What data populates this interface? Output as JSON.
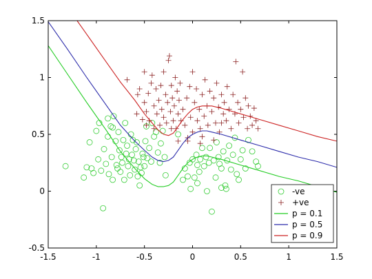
{
  "chart_data": {
    "type": "scatter",
    "title": "",
    "xlabel": "",
    "ylabel": "",
    "xlim": [
      -1.5,
      1.5
    ],
    "ylim": [
      -0.5,
      1.5
    ],
    "xticks": [
      "-1.5",
      "-1",
      "-0.5",
      "0",
      "0.5",
      "1",
      "1.5"
    ],
    "yticks": [
      "-0.5",
      "0",
      "0.5",
      "1",
      "1.5"
    ],
    "grid": false,
    "legend_position": "bottom-right",
    "legend_entries": [
      "-ve",
      "+ve",
      "p = 0.1",
      "p = 0.5",
      "p = 0.9"
    ],
    "series": [
      {
        "name": "-ve",
        "kind": "scatter",
        "marker": "circle",
        "color": "#33cc33",
        "points": [
          [
            -1.32,
            0.22
          ],
          [
            -1.13,
            0.12
          ],
          [
            -1.1,
            0.21
          ],
          [
            -1.07,
            0.43
          ],
          [
            -1.05,
            0.2
          ],
          [
            -1.03,
            0.16
          ],
          [
            -1.0,
            0.53
          ],
          [
            -0.98,
            0.28
          ],
          [
            -0.97,
            0.6
          ],
          [
            -0.95,
            0.18
          ],
          [
            -0.93,
            -0.15
          ],
          [
            -0.92,
            0.37
          ],
          [
            -0.9,
            0.24
          ],
          [
            -0.88,
            0.48
          ],
          [
            -0.87,
            0.15
          ],
          [
            -0.85,
            0.57
          ],
          [
            -0.84,
            0.3
          ],
          [
            -0.83,
            0.1
          ],
          [
            -0.82,
            0.66
          ],
          [
            -0.8,
            0.44
          ],
          [
            -0.79,
            0.23
          ],
          [
            -0.78,
            0.2
          ],
          [
            -0.77,
            0.52
          ],
          [
            -0.76,
            0.36
          ],
          [
            -0.75,
            0.17
          ],
          [
            -0.74,
            0.3
          ],
          [
            -0.73,
            0.25
          ],
          [
            -0.72,
            0.45
          ],
          [
            -0.71,
            0.1
          ],
          [
            -0.7,
            0.6
          ],
          [
            -0.69,
            0.33
          ],
          [
            -0.68,
            0.4
          ],
          [
            -0.67,
            0.22
          ],
          [
            -0.66,
            0.28
          ],
          [
            -0.65,
            0.14
          ],
          [
            -0.64,
            0.5
          ],
          [
            -0.63,
            0.32
          ],
          [
            -0.62,
            0.45
          ],
          [
            -0.61,
            0.27
          ],
          [
            -0.6,
            0.19
          ],
          [
            -0.59,
            0.37
          ],
          [
            -0.58,
            0.43
          ],
          [
            -0.57,
            0.13
          ],
          [
            -0.56,
            0.26
          ],
          [
            -0.55,
            0.05
          ],
          [
            -0.54,
            0.21
          ],
          [
            -0.53,
            0.16
          ],
          [
            -0.52,
            0.33
          ],
          [
            -0.51,
            0.3
          ],
          [
            -0.5,
            0.22
          ],
          [
            -0.49,
            0.44
          ],
          [
            -0.48,
            0.57
          ],
          [
            -0.47,
            0.29
          ],
          [
            -0.45,
            0.38
          ],
          [
            -0.43,
            0.26
          ],
          [
            -0.42,
            0.6
          ],
          [
            -0.4,
            0.48
          ],
          [
            -0.38,
            0.52
          ],
          [
            -0.36,
            0.34
          ],
          [
            -0.34,
            0.25
          ],
          [
            -0.33,
            0.42
          ],
          [
            -0.31,
            0.53
          ],
          [
            -0.29,
            0.3
          ],
          [
            -0.28,
            0.14
          ],
          [
            -0.1,
            0.1
          ],
          [
            -0.08,
            0.2
          ],
          [
            -0.05,
            0.13
          ],
          [
            -0.03,
            0.25
          ],
          [
            -0.02,
            0.02
          ],
          [
            0.0,
            0.28
          ],
          [
            0.02,
            0.12
          ],
          [
            0.04,
            0.32
          ],
          [
            0.05,
            0.07
          ],
          [
            0.07,
            0.17
          ],
          [
            0.08,
            0.28
          ],
          [
            0.1,
            0.38
          ],
          [
            0.12,
            0.22
          ],
          [
            0.14,
            0.3
          ],
          [
            0.15,
            0.0
          ],
          [
            0.17,
            0.25
          ],
          [
            0.18,
            0.38
          ],
          [
            0.2,
            -0.18
          ],
          [
            0.22,
            0.27
          ],
          [
            0.24,
            0.12
          ],
          [
            0.25,
            0.43
          ],
          [
            0.27,
            0.3
          ],
          [
            0.28,
            0.24
          ],
          [
            0.3,
            0.2
          ],
          [
            0.32,
            0.35
          ],
          [
            0.34,
            0.05
          ],
          [
            0.36,
            0.27
          ],
          [
            0.38,
            0.4
          ],
          [
            0.4,
            0.19
          ],
          [
            0.42,
            0.32
          ],
          [
            0.44,
            0.47
          ],
          [
            0.46,
            0.15
          ],
          [
            0.48,
            0.1
          ],
          [
            0.5,
            0.28
          ],
          [
            0.52,
            0.36
          ],
          [
            0.55,
            0.2
          ],
          [
            0.58,
            0.45
          ],
          [
            0.62,
            0.35
          ],
          [
            0.66,
            0.26
          ],
          [
            0.68,
            0.22
          ],
          [
            0.3,
            0.03
          ],
          [
            0.35,
            0.02
          ],
          [
            0.05,
            0.23
          ],
          [
            -0.15,
            0.5
          ],
          [
            -0.83,
            0.56
          ],
          [
            -0.88,
            0.64
          ]
        ]
      },
      {
        "name": "+ve",
        "kind": "scatter",
        "marker": "plus",
        "color": "#8b2020",
        "points": [
          [
            -0.68,
            0.98
          ],
          [
            -0.58,
            0.68
          ],
          [
            -0.57,
            0.85
          ],
          [
            -0.55,
            0.9
          ],
          [
            -0.52,
            0.63
          ],
          [
            -0.5,
            0.78
          ],
          [
            -0.5,
            1.05
          ],
          [
            -0.48,
            0.7
          ],
          [
            -0.46,
            0.86
          ],
          [
            -0.45,
            0.62
          ],
          [
            -0.43,
            0.95
          ],
          [
            -0.42,
            1.02
          ],
          [
            -0.4,
            0.75
          ],
          [
            -0.4,
            0.55
          ],
          [
            -0.38,
            0.9
          ],
          [
            -0.37,
            0.68
          ],
          [
            -0.35,
            0.8
          ],
          [
            -0.34,
            0.58
          ],
          [
            -0.33,
            0.93
          ],
          [
            -0.32,
            0.72
          ],
          [
            -0.3,
            0.65
          ],
          [
            -0.3,
            1.05
          ],
          [
            -0.28,
            0.85
          ],
          [
            -0.27,
            0.6
          ],
          [
            -0.26,
            0.78
          ],
          [
            -0.25,
            1.15
          ],
          [
            -0.24,
            1.19
          ],
          [
            -0.23,
            0.7
          ],
          [
            -0.22,
            0.93
          ],
          [
            -0.21,
            0.82
          ],
          [
            -0.2,
            0.62
          ],
          [
            -0.19,
            0.75
          ],
          [
            -0.18,
            1.0
          ],
          [
            -0.17,
            0.55
          ],
          [
            -0.16,
            0.88
          ],
          [
            -0.15,
            0.68
          ],
          [
            -0.14,
            0.8
          ],
          [
            -0.13,
            0.95
          ],
          [
            -0.12,
            0.62
          ],
          [
            -0.1,
            0.72
          ],
          [
            -0.08,
            0.58
          ],
          [
            -0.06,
            0.82
          ],
          [
            -0.05,
            0.47
          ],
          [
            -0.03,
            0.92
          ],
          [
            -0.02,
            0.65
          ],
          [
            0.0,
            1.05
          ],
          [
            0.0,
            0.52
          ],
          [
            0.02,
            0.78
          ],
          [
            0.04,
            0.9
          ],
          [
            0.05,
            0.62
          ],
          [
            0.07,
            0.72
          ],
          [
            0.08,
            0.55
          ],
          [
            0.1,
            0.85
          ],
          [
            0.12,
            0.66
          ],
          [
            0.13,
            0.98
          ],
          [
            0.15,
            0.75
          ],
          [
            0.16,
            0.58
          ],
          [
            0.18,
            0.88
          ],
          [
            0.2,
            0.7
          ],
          [
            0.22,
            0.82
          ],
          [
            0.24,
            0.6
          ],
          [
            0.25,
            0.95
          ],
          [
            0.27,
            0.74
          ],
          [
            0.28,
            0.52
          ],
          [
            0.3,
            0.85
          ],
          [
            0.32,
            0.68
          ],
          [
            0.33,
            0.78
          ],
          [
            0.35,
            0.62
          ],
          [
            0.36,
            0.92
          ],
          [
            0.38,
            0.72
          ],
          [
            0.4,
            0.55
          ],
          [
            0.42,
            0.85
          ],
          [
            0.44,
            0.68
          ],
          [
            0.45,
            1.14
          ],
          [
            0.47,
            0.78
          ],
          [
            0.48,
            0.6
          ],
          [
            0.5,
            0.72
          ],
          [
            0.52,
            1.05
          ],
          [
            0.53,
            0.65
          ],
          [
            0.55,
            0.82
          ],
          [
            0.57,
            0.55
          ],
          [
            0.58,
            0.75
          ],
          [
            0.6,
            0.66
          ],
          [
            0.62,
            0.58
          ],
          [
            0.64,
            0.73
          ],
          [
            0.66,
            0.62
          ],
          [
            0.68,
            0.55
          ],
          [
            -0.22,
            0.55
          ],
          [
            -0.05,
            0.44
          ],
          [
            0.1,
            0.48
          ],
          [
            0.22,
            0.45
          ],
          [
            -0.15,
            0.44
          ],
          [
            -0.48,
            0.58
          ],
          [
            0.3,
            0.6
          ],
          [
            0.08,
            0.42
          ]
        ]
      },
      {
        "name": "p = 0.1",
        "kind": "line",
        "color": "#22cc22",
        "points": [
          [
            -1.5,
            1.28
          ],
          [
            -1.3,
            1.03
          ],
          [
            -1.1,
            0.78
          ],
          [
            -0.9,
            0.54
          ],
          [
            -0.75,
            0.35
          ],
          [
            -0.6,
            0.2
          ],
          [
            -0.5,
            0.11
          ],
          [
            -0.42,
            0.06
          ],
          [
            -0.36,
            0.04
          ],
          [
            -0.3,
            0.04
          ],
          [
            -0.25,
            0.05
          ],
          [
            -0.2,
            0.08
          ],
          [
            -0.15,
            0.14
          ],
          [
            -0.1,
            0.2
          ],
          [
            -0.05,
            0.25
          ],
          [
            0.0,
            0.28
          ],
          [
            0.05,
            0.3
          ],
          [
            0.1,
            0.31
          ],
          [
            0.15,
            0.31
          ],
          [
            0.2,
            0.3
          ],
          [
            0.3,
            0.28
          ],
          [
            0.5,
            0.23
          ],
          [
            0.7,
            0.18
          ],
          [
            0.9,
            0.13
          ],
          [
            1.1,
            0.09
          ],
          [
            1.3,
            0.04
          ],
          [
            1.5,
            -0.01
          ]
        ]
      },
      {
        "name": "p = 0.5",
        "kind": "line",
        "color": "#2b2baa",
        "points": [
          [
            -1.5,
            1.49
          ],
          [
            -1.3,
            1.25
          ],
          [
            -1.1,
            1.0
          ],
          [
            -0.9,
            0.76
          ],
          [
            -0.75,
            0.58
          ],
          [
            -0.6,
            0.44
          ],
          [
            -0.5,
            0.36
          ],
          [
            -0.42,
            0.3
          ],
          [
            -0.36,
            0.27
          ],
          [
            -0.3,
            0.26
          ],
          [
            -0.25,
            0.27
          ],
          [
            -0.2,
            0.3
          ],
          [
            -0.15,
            0.36
          ],
          [
            -0.1,
            0.42
          ],
          [
            -0.05,
            0.47
          ],
          [
            0.0,
            0.5
          ],
          [
            0.05,
            0.52
          ],
          [
            0.1,
            0.53
          ],
          [
            0.15,
            0.53
          ],
          [
            0.2,
            0.52
          ],
          [
            0.3,
            0.5
          ],
          [
            0.5,
            0.45
          ],
          [
            0.7,
            0.4
          ],
          [
            0.9,
            0.35
          ],
          [
            1.1,
            0.3
          ],
          [
            1.3,
            0.26
          ],
          [
            1.5,
            0.21
          ]
        ]
      },
      {
        "name": "p = 0.9",
        "kind": "line",
        "color": "#cc2222",
        "points": [
          [
            -1.2,
            1.5
          ],
          [
            -1.1,
            1.38
          ],
          [
            -0.9,
            1.14
          ],
          [
            -0.75,
            0.96
          ],
          [
            -0.6,
            0.8
          ],
          [
            -0.5,
            0.68
          ],
          [
            -0.42,
            0.6
          ],
          [
            -0.36,
            0.54
          ],
          [
            -0.3,
            0.5
          ],
          [
            -0.25,
            0.49
          ],
          [
            -0.2,
            0.51
          ],
          [
            -0.15,
            0.57
          ],
          [
            -0.1,
            0.63
          ],
          [
            -0.05,
            0.68
          ],
          [
            0.0,
            0.72
          ],
          [
            0.05,
            0.74
          ],
          [
            0.1,
            0.75
          ],
          [
            0.15,
            0.75
          ],
          [
            0.2,
            0.75
          ],
          [
            0.3,
            0.73
          ],
          [
            0.5,
            0.68
          ],
          [
            0.7,
            0.63
          ],
          [
            0.9,
            0.58
          ],
          [
            1.1,
            0.53
          ],
          [
            1.3,
            0.48
          ],
          [
            1.5,
            0.44
          ]
        ]
      }
    ]
  }
}
